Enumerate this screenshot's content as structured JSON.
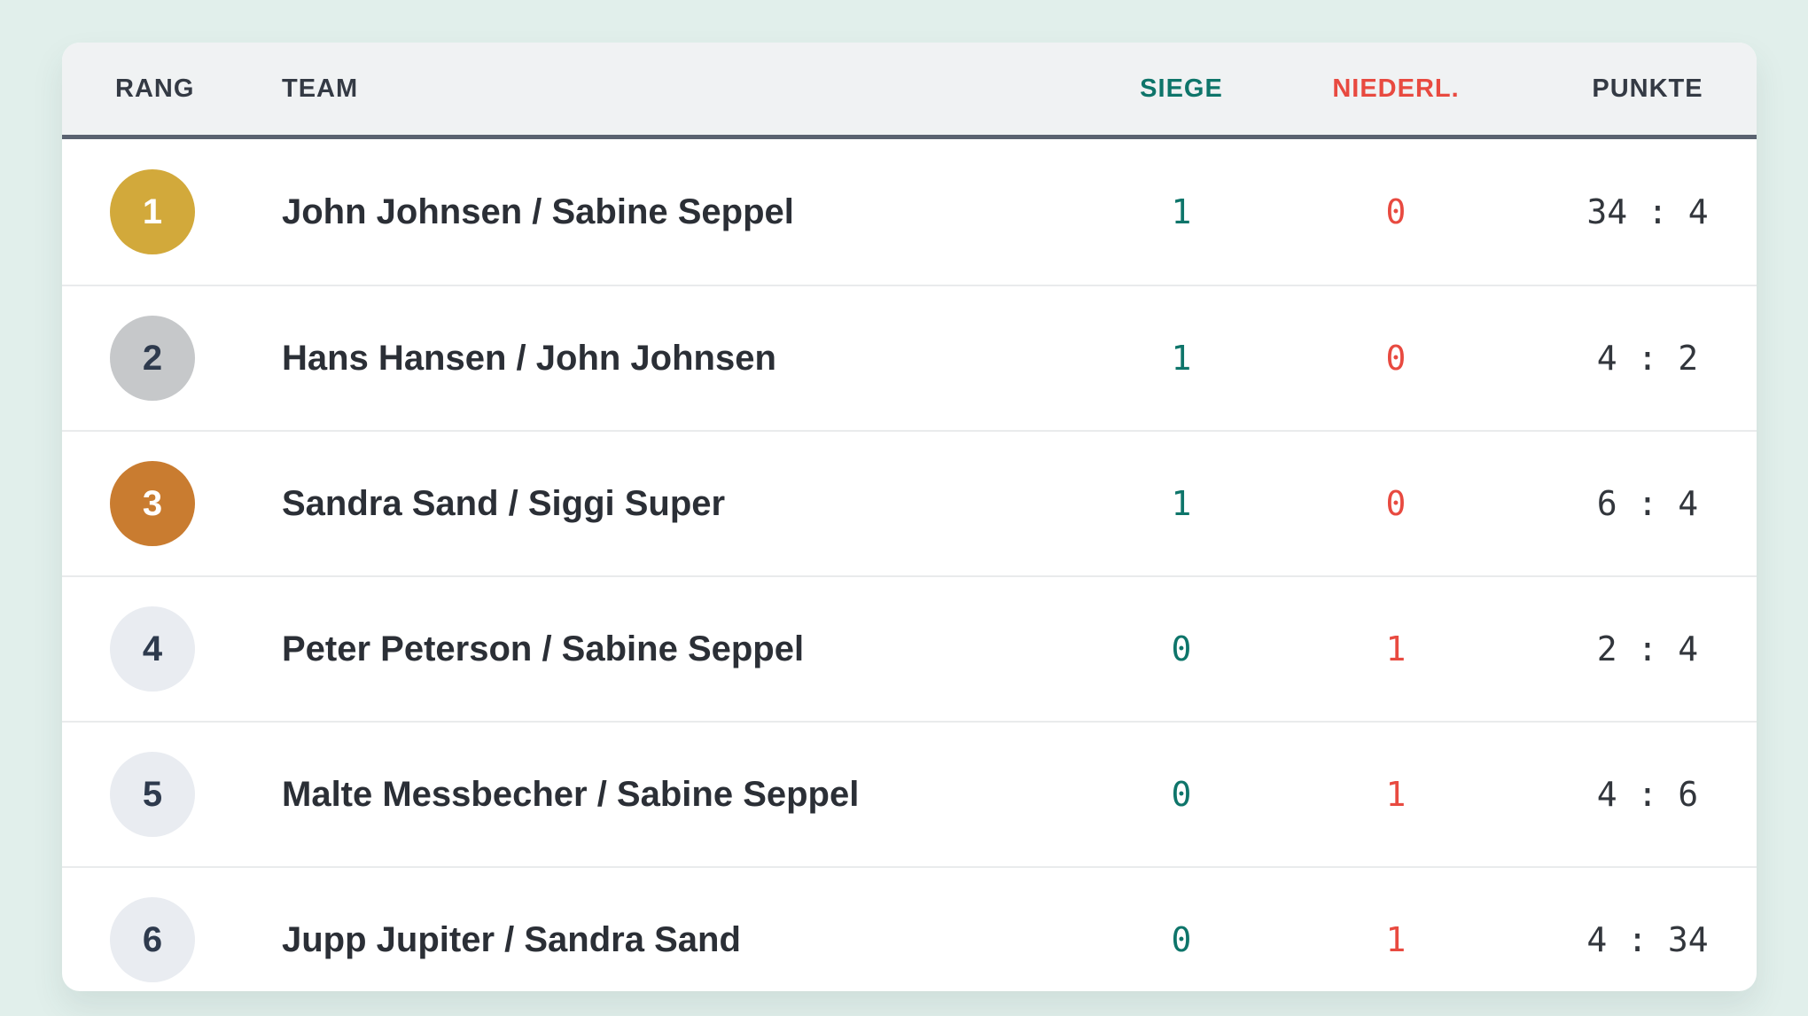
{
  "page": {
    "background_color": "#e1efeb"
  },
  "table": {
    "headers": {
      "rang": "RANG",
      "team": "TEAM",
      "siege": "SIEGE",
      "niederl": "NIEDERL.",
      "punkte": "PUNKTE"
    },
    "header_colors": {
      "default": "#343a44",
      "siege": "#0e756a",
      "niederl": "#e84a40"
    },
    "value_colors": {
      "siege": "#0e756a",
      "niederl": "#e84a40",
      "punkte": "#32363c"
    },
    "medal_colors": {
      "gold": {
        "bg": "#d2a93b",
        "fg": "#ffffff"
      },
      "silver": {
        "bg": "#c6c8ca",
        "fg": "#2e3a4d"
      },
      "bronze": {
        "bg": "#c97c30",
        "fg": "#ffffff"
      },
      "none": {
        "bg": "#e9ecf1",
        "fg": "#2e3a4d"
      }
    },
    "rows": [
      {
        "rank": "1",
        "medal": "gold",
        "team": "John Johnsen / Sabine Seppel",
        "siege": "1",
        "niederl": "0",
        "punkte": "34 : 4"
      },
      {
        "rank": "2",
        "medal": "silver",
        "team": "Hans Hansen / John Johnsen",
        "siege": "1",
        "niederl": "0",
        "punkte": "4 : 2"
      },
      {
        "rank": "3",
        "medal": "bronze",
        "team": "Sandra Sand / Siggi Super",
        "siege": "1",
        "niederl": "0",
        "punkte": "6 : 4"
      },
      {
        "rank": "4",
        "medal": "none",
        "team": "Peter Peterson / Sabine Seppel",
        "siege": "0",
        "niederl": "1",
        "punkte": "2 : 4"
      },
      {
        "rank": "5",
        "medal": "none",
        "team": "Malte Messbecher / Sabine Seppel",
        "siege": "0",
        "niederl": "1",
        "punkte": "4 : 6"
      },
      {
        "rank": "6",
        "medal": "none",
        "team": "Jupp Jupiter / Sandra Sand",
        "siege": "0",
        "niederl": "1",
        "punkte": "4 : 34"
      }
    ]
  }
}
